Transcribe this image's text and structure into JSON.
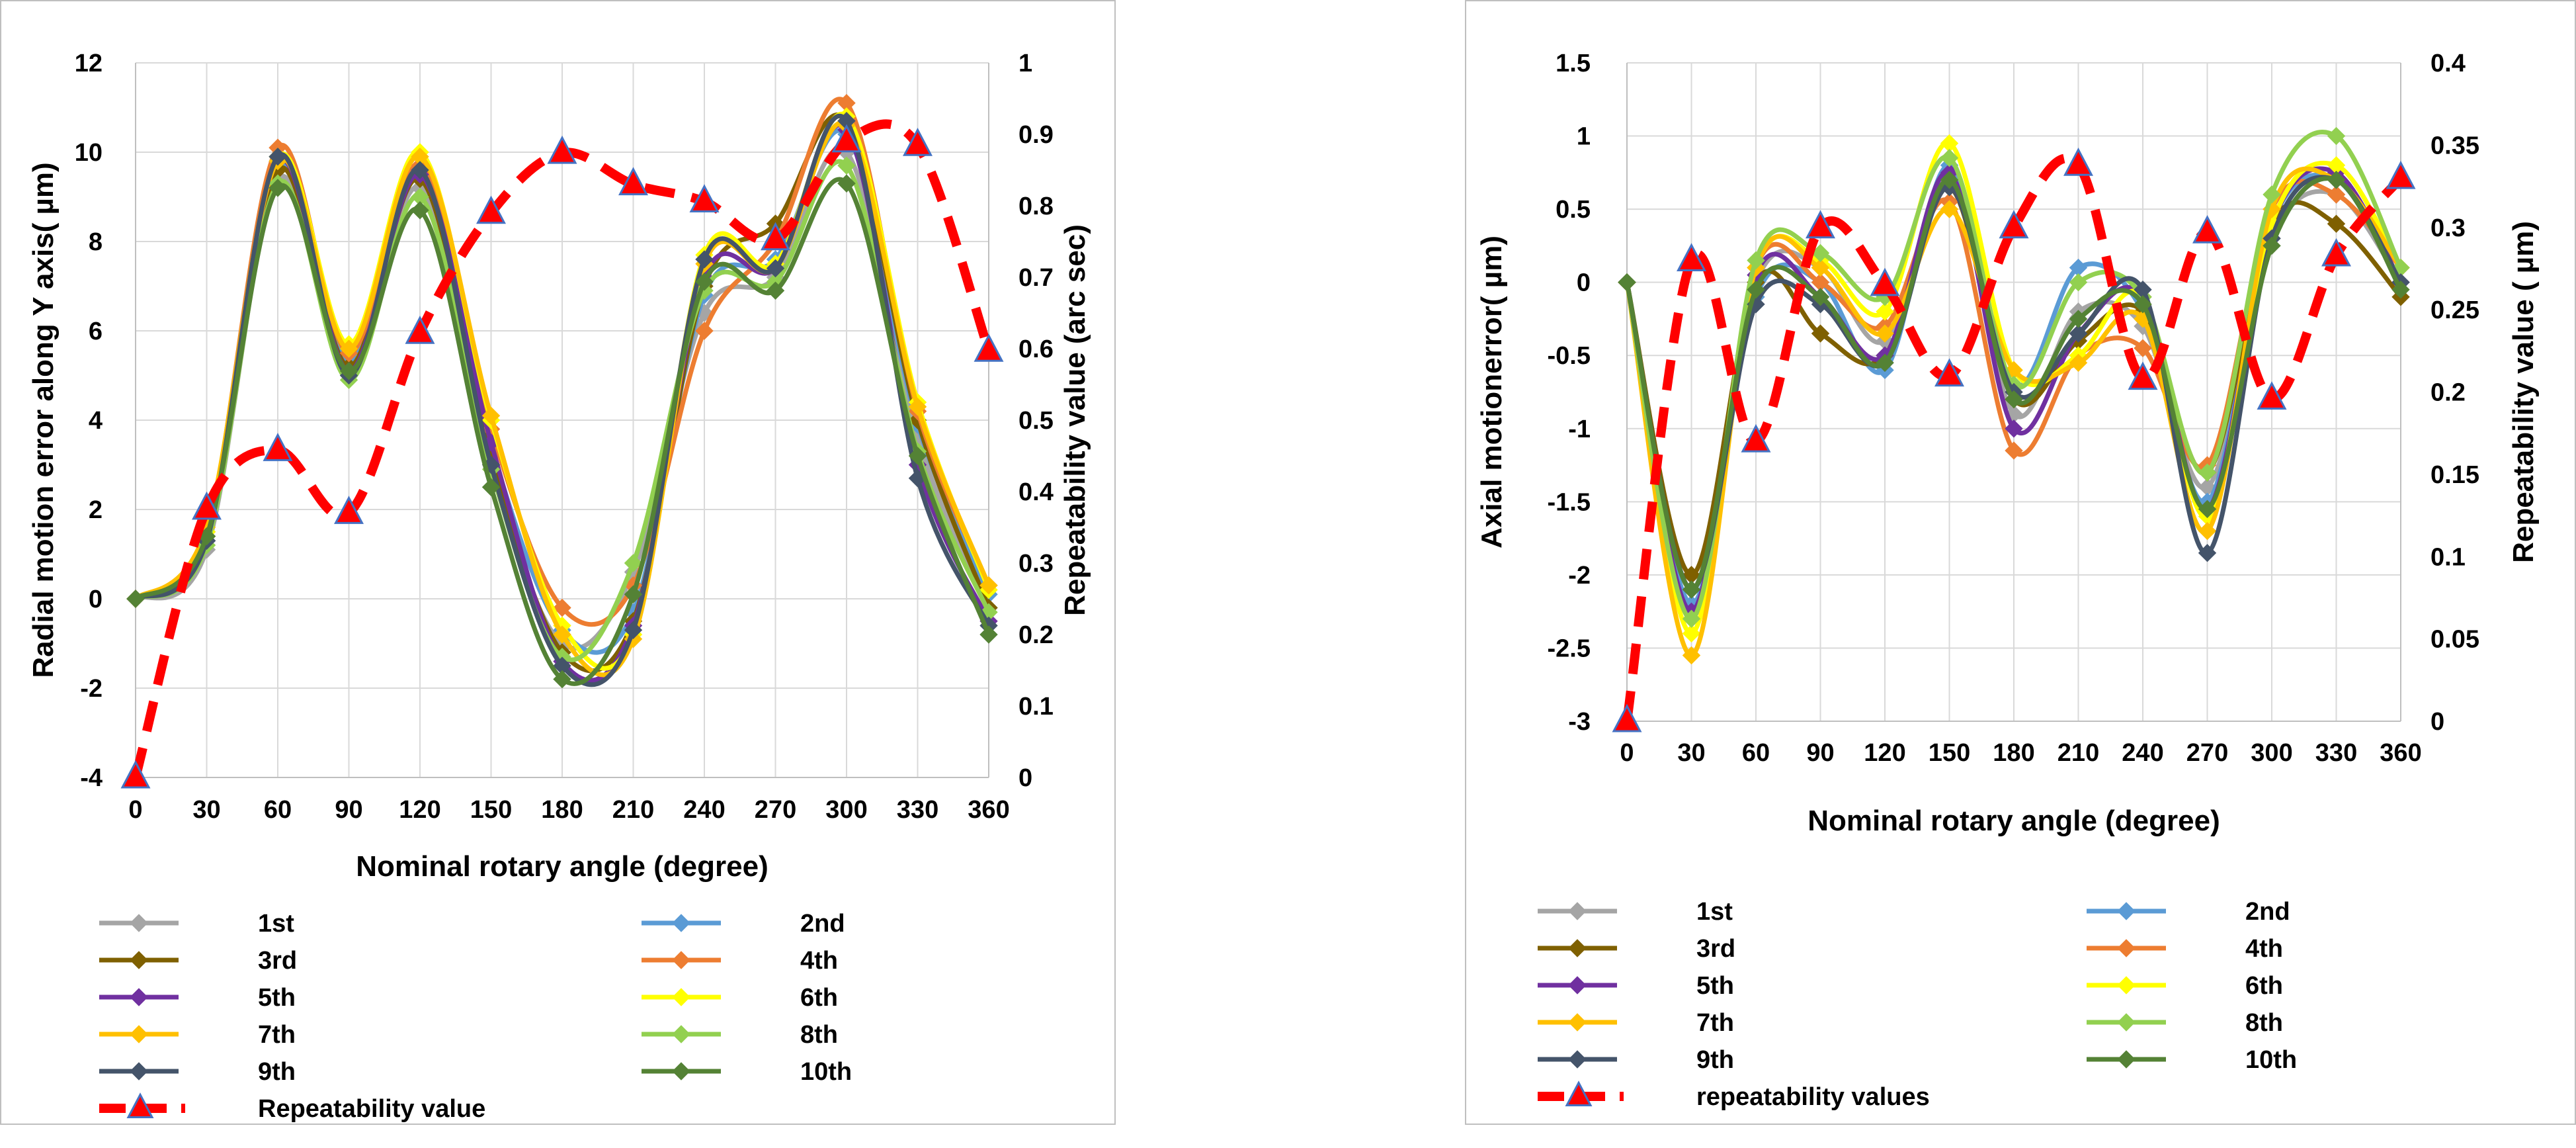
{
  "colors": {
    "1st": "#a5a5a5",
    "2nd": "#5b9bd5",
    "3rd": "#7f6000",
    "4th": "#ed7d31",
    "5th": "#7030a0",
    "6th": "#ffff00",
    "7th": "#ffc000",
    "8th": "#92d050",
    "9th": "#44546a",
    "10th": "#548235",
    "repeatability": "#ff0000",
    "marker_triangle": "#4472c4",
    "grid": "#d9d9d9",
    "frame": "#bfbfbf"
  },
  "chart_data": [
    {
      "type": "line",
      "ylabel": "Radial motion error along Y axis( µm)",
      "y2label": "Repeatability value (arc sec)",
      "xlabel": "Nominal rotary angle (degree)",
      "x": [
        0,
        30,
        60,
        90,
        120,
        150,
        180,
        210,
        240,
        270,
        300,
        330,
        360
      ],
      "x_tick_labels": [
        "0",
        "30",
        "60",
        "90",
        "120",
        "150",
        "180",
        "210",
        "240",
        "270",
        "300",
        "330",
        "360"
      ],
      "ylim": [
        -4,
        12
      ],
      "y_ticks": [
        -4,
        -2,
        0,
        2,
        4,
        6,
        8,
        10,
        12
      ],
      "y_tick_labels": [
        "-4",
        "-2",
        "0",
        "2",
        "4",
        "6",
        "8",
        "10",
        "12"
      ],
      "y2lim": [
        0,
        1
      ],
      "y2_ticks": [
        0,
        0.1,
        0.2,
        0.3,
        0.4,
        0.5,
        0.6,
        0.7,
        0.8,
        0.9,
        1
      ],
      "y2_tick_labels": [
        "0",
        "0.1",
        "0.2",
        "0.3",
        "0.4",
        "0.5",
        "0.6",
        "0.7",
        "0.8",
        "0.9",
        "1"
      ],
      "grid": true,
      "legend_position": "bottom",
      "series": [
        {
          "name": "1st",
          "key": "1st",
          "values": [
            0,
            1.1,
            9.4,
            5.2,
            9.2,
            3.0,
            -1.0,
            0.6,
            6.4,
            7.2,
            10.0,
            3.6,
            -0.2
          ]
        },
        {
          "name": "2nd",
          "key": "2nd",
          "values": [
            0,
            1.3,
            9.7,
            5.4,
            9.5,
            3.4,
            -0.7,
            -0.3,
            6.8,
            7.6,
            10.4,
            3.9,
            0.1
          ]
        },
        {
          "name": "3rd",
          "key": "3rd",
          "values": [
            0,
            1.4,
            9.6,
            5.2,
            9.4,
            3.2,
            -1.2,
            -0.5,
            7.0,
            8.4,
            10.7,
            4.0,
            -0.2
          ]
        },
        {
          "name": "4th",
          "key": "4th",
          "values": [
            0,
            1.5,
            10.1,
            5.5,
            9.7,
            3.8,
            -0.2,
            0.3,
            6.0,
            8.0,
            11.1,
            4.2,
            0.3
          ]
        },
        {
          "name": "5th",
          "key": "5th",
          "values": [
            0,
            1.3,
            9.8,
            5.1,
            9.5,
            3.5,
            -1.4,
            -0.6,
            7.2,
            7.4,
            10.5,
            3.0,
            -0.5
          ]
        },
        {
          "name": "6th",
          "key": "6th",
          "values": [
            0,
            1.5,
            9.9,
            5.7,
            10.0,
            4.0,
            -0.6,
            -0.8,
            7.7,
            7.5,
            10.8,
            4.4,
            0.2
          ]
        },
        {
          "name": "7th",
          "key": "7th",
          "values": [
            0,
            1.6,
            9.8,
            5.6,
            9.9,
            4.1,
            -0.8,
            -0.9,
            7.5,
            7.4,
            10.6,
            4.3,
            0.3
          ]
        },
        {
          "name": "8th",
          "key": "8th",
          "values": [
            0,
            1.2,
            9.3,
            4.9,
            9.0,
            2.9,
            -1.3,
            0.8,
            6.9,
            7.1,
            9.7,
            3.3,
            -0.3
          ]
        },
        {
          "name": "9th",
          "key": "9th",
          "values": [
            0,
            1.3,
            9.9,
            5.0,
            9.6,
            3.0,
            -1.5,
            -0.7,
            7.6,
            7.4,
            10.7,
            2.7,
            -0.6
          ]
        },
        {
          "name": "10th",
          "key": "10th",
          "values": [
            0,
            1.4,
            9.2,
            5.1,
            8.7,
            2.5,
            -1.8,
            0.1,
            7.1,
            6.9,
            9.3,
            3.2,
            -0.8
          ]
        }
      ],
      "repeatability": {
        "name": "Repeatability value",
        "values": [
          0,
          0.376,
          0.458,
          0.37,
          0.622,
          0.79,
          0.874,
          0.83,
          0.806,
          0.753,
          0.89,
          0.885,
          0.597
        ]
      }
    },
    {
      "type": "line",
      "ylabel": "Axial motionerror( µm)",
      "y2label": "Repeatability value ( µm)",
      "xlabel": "Nominal rotary angle (degree)",
      "x": [
        0,
        30,
        60,
        90,
        120,
        150,
        180,
        210,
        240,
        270,
        300,
        330,
        360
      ],
      "x_tick_labels": [
        "0",
        "30",
        "60",
        "90",
        "120",
        "150",
        "180",
        "210",
        "240",
        "270",
        "300",
        "330",
        "360"
      ],
      "ylim": [
        -3,
        1.5
      ],
      "y_ticks": [
        -3,
        -2.5,
        -2,
        -1.5,
        -1,
        -0.5,
        0,
        0.5,
        1,
        1.5
      ],
      "y_tick_labels": [
        "-3",
        "-2.5",
        "-2",
        "-1.5",
        "-1",
        "-0.5",
        "0",
        "0.5",
        "1",
        "1.5"
      ],
      "y2lim": [
        0,
        0.4
      ],
      "y2_ticks": [
        0,
        0.05,
        0.1,
        0.15,
        0.2,
        0.25,
        0.3,
        0.35,
        0.4
      ],
      "y2_tick_labels": [
        "0",
        "0.05",
        "0.1",
        "0.15",
        "0.2",
        "0.25",
        "0.3",
        "0.35",
        "0.4"
      ],
      "grid": true,
      "legend_position": "bottom",
      "series": [
        {
          "name": "1st",
          "key": "1st",
          "values": [
            0,
            -2.1,
            0.0,
            0.1,
            -0.4,
            0.7,
            -0.9,
            -0.2,
            -0.3,
            -1.4,
            0.3,
            0.6,
            0.0
          ]
        },
        {
          "name": "2nd",
          "key": "2nd",
          "values": [
            0,
            -2.2,
            -0.1,
            0.0,
            -0.6,
            0.8,
            -0.7,
            0.1,
            -0.2,
            -1.5,
            0.4,
            0.7,
            0.0
          ]
        },
        {
          "name": "3rd",
          "key": "3rd",
          "values": [
            0,
            -2.0,
            0.0,
            -0.35,
            -0.5,
            0.65,
            -0.8,
            -0.4,
            -0.2,
            -1.3,
            0.4,
            0.4,
            -0.1
          ]
        },
        {
          "name": "4th",
          "key": "4th",
          "values": [
            0,
            -2.3,
            0.1,
            0.0,
            -0.3,
            0.55,
            -1.15,
            -0.5,
            -0.45,
            -1.25,
            0.5,
            0.6,
            0.1
          ]
        },
        {
          "name": "5th",
          "key": "5th",
          "values": [
            0,
            -2.25,
            0.05,
            -0.1,
            -0.5,
            0.75,
            -1.0,
            -0.35,
            -0.1,
            -1.55,
            0.4,
            0.75,
            0.0
          ]
        },
        {
          "name": "6th",
          "key": "6th",
          "values": [
            0,
            -2.4,
            0.1,
            0.15,
            -0.2,
            0.95,
            -0.6,
            -0.5,
            -0.1,
            -1.6,
            0.4,
            0.8,
            0.1
          ]
        },
        {
          "name": "7th",
          "key": "7th",
          "values": [
            0,
            -2.55,
            0.1,
            0.1,
            -0.35,
            0.5,
            -0.6,
            -0.55,
            -0.25,
            -1.7,
            0.5,
            0.7,
            0.1
          ]
        },
        {
          "name": "8th",
          "key": "8th",
          "values": [
            0,
            -2.3,
            0.15,
            0.2,
            -0.1,
            0.85,
            -0.7,
            0.0,
            -0.1,
            -1.3,
            0.6,
            1.0,
            0.1
          ]
        },
        {
          "name": "9th",
          "key": "9th",
          "values": [
            0,
            -2.1,
            -0.15,
            -0.15,
            -0.55,
            0.65,
            -0.75,
            -0.35,
            -0.05,
            -1.85,
            0.3,
            0.7,
            0.0
          ]
        },
        {
          "name": "10th",
          "key": "10th",
          "values": [
            0,
            -2.1,
            -0.05,
            -0.1,
            -0.55,
            0.7,
            -0.8,
            -0.25,
            -0.15,
            -1.55,
            0.25,
            0.7,
            -0.05
          ]
        }
      ],
      "repeatability": {
        "name": "repeatability values",
        "values": [
          0,
          0.28,
          0.17,
          0.3,
          0.265,
          0.21,
          0.3,
          0.338,
          0.208,
          0.297,
          0.196,
          0.283,
          0.33
        ]
      }
    }
  ]
}
